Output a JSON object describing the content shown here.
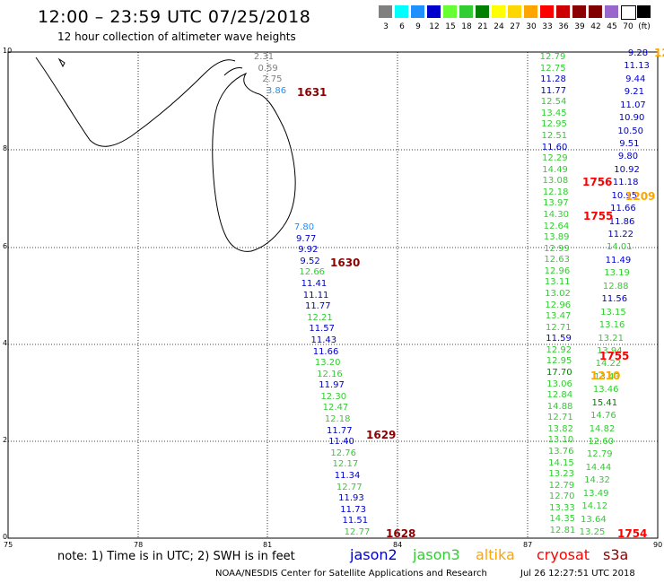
{
  "title": "12:00 – 23:59 UTC 07/25/2018",
  "subtitle": "12 hour collection of altimeter wave heights",
  "scale": {
    "unit_label": "(ft)",
    "levels": [
      {
        "label": "3",
        "color": "#808080"
      },
      {
        "label": "6",
        "color": "#00ffff"
      },
      {
        "label": "9",
        "color": "#1e90ff"
      },
      {
        "label": "12",
        "color": "#0000cd"
      },
      {
        "label": "15",
        "color": "#66ff33"
      },
      {
        "label": "18",
        "color": "#32cd32"
      },
      {
        "label": "21",
        "color": "#008000"
      },
      {
        "label": "24",
        "color": "#ffff00"
      },
      {
        "label": "27",
        "color": "#ffd700"
      },
      {
        "label": "30",
        "color": "#ffa500"
      },
      {
        "label": "33",
        "color": "#ff0000"
      },
      {
        "label": "36",
        "color": "#cc0000"
      },
      {
        "label": "39",
        "color": "#8b0000"
      },
      {
        "label": "42",
        "color": "#800000"
      },
      {
        "label": "45",
        "color": "#9966cc"
      },
      {
        "label": "70",
        "color": "#ffffff"
      },
      {
        "label": "(ft)",
        "color": "#000000"
      }
    ]
  },
  "axes": {
    "x_ticks": [
      "75",
      "78",
      "81",
      "84",
      "87",
      "90"
    ],
    "y_ticks": [
      "0",
      "2",
      "4",
      "6",
      "8",
      "10"
    ]
  },
  "colors": {
    "jason2": "#0000cd",
    "jason3": "#32cd32",
    "altika": "#ffa500",
    "cryosat": "#ff0000",
    "s3a": "#8b0000",
    "grey": "#808080",
    "cyan": "#1e90ff",
    "green_dark": "#008000"
  },
  "track1": [
    {
      "v": "2.31",
      "c": "grey"
    },
    {
      "v": "0.59",
      "c": "grey"
    },
    {
      "v": "2.75",
      "c": "grey"
    },
    {
      "v": "3.86",
      "c": "cyan"
    }
  ],
  "track2": [
    {
      "v": "7.80",
      "c": "cyan"
    },
    {
      "v": "9.77",
      "c": "jason2"
    },
    {
      "v": "9.92",
      "c": "jason2"
    },
    {
      "v": "9.52",
      "c": "jason2"
    },
    {
      "v": "12.66",
      "c": "jason3"
    },
    {
      "v": "11.41",
      "c": "jason2"
    },
    {
      "v": "11.11",
      "c": "jason2"
    },
    {
      "v": "11.77",
      "c": "jason2"
    },
    {
      "v": "12.21",
      "c": "jason3"
    },
    {
      "v": "11.57",
      "c": "jason2"
    },
    {
      "v": "11.43",
      "c": "jason2"
    },
    {
      "v": "11.66",
      "c": "jason2"
    },
    {
      "v": "13.20",
      "c": "jason3"
    },
    {
      "v": "12.16",
      "c": "jason3"
    },
    {
      "v": "11.97",
      "c": "jason2"
    },
    {
      "v": "12.30",
      "c": "jason3"
    },
    {
      "v": "12.47",
      "c": "jason3"
    },
    {
      "v": "12.18",
      "c": "jason3"
    },
    {
      "v": "11.77",
      "c": "jason2"
    },
    {
      "v": "11.40",
      "c": "jason2"
    },
    {
      "v": "12.76",
      "c": "jason3"
    },
    {
      "v": "12.17",
      "c": "jason3"
    },
    {
      "v": "11.34",
      "c": "jason2"
    },
    {
      "v": "12.77",
      "c": "jason3"
    },
    {
      "v": "11.93",
      "c": "jason2"
    },
    {
      "v": "11.73",
      "c": "jason2"
    },
    {
      "v": "11.51",
      "c": "jason2"
    },
    {
      "v": "12.77",
      "c": "jason3"
    }
  ],
  "track3": [
    {
      "v": "12.79",
      "c": "jason3"
    },
    {
      "v": "12.75",
      "c": "jason3"
    },
    {
      "v": "11.28",
      "c": "jason2"
    },
    {
      "v": "11.77",
      "c": "jason2"
    },
    {
      "v": "12.54",
      "c": "jason3"
    },
    {
      "v": "13.45",
      "c": "jason3"
    },
    {
      "v": "12.95",
      "c": "jason3"
    },
    {
      "v": "12.51",
      "c": "jason3"
    },
    {
      "v": "11.60",
      "c": "jason2"
    },
    {
      "v": "12.29",
      "c": "jason3"
    },
    {
      "v": "14.49",
      "c": "jason3"
    },
    {
      "v": "13.08",
      "c": "jason3"
    },
    {
      "v": "12.18",
      "c": "jason3"
    },
    {
      "v": "13.97",
      "c": "jason3"
    },
    {
      "v": "14.30",
      "c": "jason3"
    },
    {
      "v": "12.64",
      "c": "jason3"
    },
    {
      "v": "13.89",
      "c": "jason3"
    },
    {
      "v": "12.99",
      "c": "jason3"
    },
    {
      "v": "12.63",
      "c": "jason3"
    },
    {
      "v": "12.96",
      "c": "jason3"
    },
    {
      "v": "13.11",
      "c": "jason3"
    },
    {
      "v": "13.02",
      "c": "jason3"
    },
    {
      "v": "12.96",
      "c": "jason3"
    },
    {
      "v": "13.47",
      "c": "jason3"
    },
    {
      "v": "12.71",
      "c": "jason3"
    },
    {
      "v": "11.59",
      "c": "jason2"
    },
    {
      "v": "12.92",
      "c": "jason3"
    },
    {
      "v": "12.95",
      "c": "jason3"
    },
    {
      "v": "17.70",
      "c": "green_dark"
    },
    {
      "v": "13.06",
      "c": "jason3"
    },
    {
      "v": "12.84",
      "c": "jason3"
    },
    {
      "v": "14.88",
      "c": "jason3"
    },
    {
      "v": "12.71",
      "c": "jason3"
    },
    {
      "v": "13.82",
      "c": "jason3"
    },
    {
      "v": "13.10",
      "c": "jason3"
    },
    {
      "v": "13.76",
      "c": "jason3"
    },
    {
      "v": "14.15",
      "c": "jason3"
    },
    {
      "v": "13.23",
      "c": "jason3"
    },
    {
      "v": "12.79",
      "c": "jason3"
    },
    {
      "v": "12.70",
      "c": "jason3"
    },
    {
      "v": "13.33",
      "c": "jason3"
    },
    {
      "v": "14.35",
      "c": "jason3"
    },
    {
      "v": "12.81",
      "c": "jason3"
    }
  ],
  "track4": [
    {
      "v": "9.28",
      "c": "jason2"
    },
    {
      "v": "11.13",
      "c": "jason2"
    },
    {
      "v": "9.44",
      "c": "jason2"
    },
    {
      "v": "9.21",
      "c": "jason2"
    },
    {
      "v": "11.07",
      "c": "jason2"
    },
    {
      "v": "10.90",
      "c": "jason2"
    },
    {
      "v": "10.50",
      "c": "jason2"
    },
    {
      "v": "9.51",
      "c": "jason2"
    },
    {
      "v": "9.80",
      "c": "jason2"
    },
    {
      "v": "10.92",
      "c": "jason2"
    },
    {
      "v": "11.18",
      "c": "jason2"
    },
    {
      "v": "10.95",
      "c": "jason2"
    },
    {
      "v": "11.66",
      "c": "jason2"
    },
    {
      "v": "11.86",
      "c": "jason2"
    },
    {
      "v": "11.22",
      "c": "jason2"
    },
    {
      "v": "14.01",
      "c": "jason3"
    },
    {
      "v": "11.49",
      "c": "jason2"
    },
    {
      "v": "13.19",
      "c": "jason3"
    },
    {
      "v": "12.88",
      "c": "jason3"
    },
    {
      "v": "11.56",
      "c": "jason2"
    },
    {
      "v": "13.15",
      "c": "jason3"
    },
    {
      "v": "13.16",
      "c": "jason3"
    },
    {
      "v": "13.21",
      "c": "jason3"
    },
    {
      "v": "13.94",
      "c": "jason3"
    },
    {
      "v": "14.22",
      "c": "jason3"
    },
    {
      "v": "13.43",
      "c": "jason3"
    },
    {
      "v": "13.46",
      "c": "jason3"
    },
    {
      "v": "15.41",
      "c": "green_dark"
    },
    {
      "v": "14.76",
      "c": "jason3"
    },
    {
      "v": "14.82",
      "c": "jason3"
    },
    {
      "v": "12.60",
      "c": "jason3"
    },
    {
      "v": "12.79",
      "c": "jason3"
    },
    {
      "v": "14.44",
      "c": "jason3"
    },
    {
      "v": "14.32",
      "c": "jason3"
    },
    {
      "v": "13.49",
      "c": "jason3"
    },
    {
      "v": "14.12",
      "c": "jason3"
    },
    {
      "v": "13.64",
      "c": "jason3"
    },
    {
      "v": "13.25",
      "c": "jason3"
    }
  ],
  "times": [
    {
      "v": "1631",
      "c": "s3a"
    },
    {
      "v": "1630",
      "c": "s3a"
    },
    {
      "v": "1629",
      "c": "s3a"
    },
    {
      "v": "1628",
      "c": "s3a"
    },
    {
      "v": "1756",
      "c": "cryosat"
    },
    {
      "v": "1755",
      "c": "cryosat"
    },
    {
      "v": "1755",
      "c": "cryosat"
    },
    {
      "v": "1754",
      "c": "cryosat"
    },
    {
      "v": "1209",
      "c": "altika"
    },
    {
      "v": "1210",
      "c": "altika"
    },
    {
      "v": "12",
      "c": "altika"
    }
  ],
  "legend": {
    "note": "note: 1) Time is in UTC; 2) SWH is in feet",
    "jason2": "jason2",
    "jason3": "jason3",
    "altika": "altika",
    "cryosat": "cryosat",
    "s3a": "s3a"
  },
  "footer": {
    "credit": "NOAA/NESDIS Center for Satellite Applications and Research",
    "timestamp": "Jul 26 12:27:51 UTC 2018"
  }
}
